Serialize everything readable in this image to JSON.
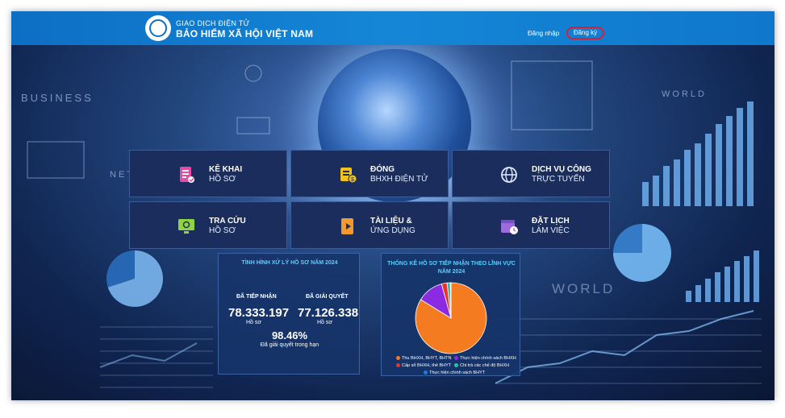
{
  "header": {
    "brand_top": "GIAO DỊCH ĐIỆN TỬ",
    "brand_main": "BẢO HIỂM XÃ HỘI VIỆT NAM",
    "login": "Đăng nhập",
    "register": "Đăng ký"
  },
  "background_texts": [
    "BUSINESS",
    "NETWO",
    "WORLD",
    "WORLD"
  ],
  "tiles": [
    {
      "line1": "KÊ KHAI",
      "line2": "HỒ SƠ",
      "icon": "document-form-icon",
      "color": "#e84aa6"
    },
    {
      "line1": "ĐÓNG",
      "line2": "BHXH ĐIỆN TỬ",
      "icon": "money-bill-icon",
      "color": "#f2c21b"
    },
    {
      "line1": "DỊCH VỤ CÔNG",
      "line2": "TRỰC TUYẾN",
      "icon": "globe-icon",
      "color": "#dfe8ff"
    },
    {
      "line1": "TRA CỨU",
      "line2": "HỒ SƠ",
      "icon": "monitor-search-icon",
      "color": "#8fd33e"
    },
    {
      "line1": "TÀI LIỆU &",
      "line2": "ỨNG DỤNG",
      "icon": "document-play-icon",
      "color": "#f39a2d"
    },
    {
      "line1": "ĐẶT LỊCH",
      "line2": "LÀM VIỆC",
      "icon": "calendar-clock-icon",
      "color": "#9d6bdf"
    }
  ],
  "stats": {
    "title": "TÌNH HÌNH XỬ LÝ HỒ SƠ NĂM 2024",
    "received_label": "ĐÃ TIẾP NHẬN",
    "received_value": "78.333.197",
    "resolved_label": "ĐÃ GIẢI QUYẾT",
    "resolved_value": "77.126.338",
    "unit": "Hồ sơ",
    "rate": "98.46%",
    "rate_label": "Đã giải quyết trong hạn"
  },
  "chart_data": {
    "type": "pie",
    "title": "THỐNG KÊ HỒ SƠ TIẾP NHẬN THEO LĨNH VỰC NĂM 2024",
    "labels": [
      "Thu BHXH, BHYT, BHTN",
      "Thực hiện chính sách BHXH",
      "Cấp sổ BHXH, thẻ BHYT",
      "Chi trả các chế độ BHXH",
      "Thực hiện chính sách BHYT"
    ],
    "values": [
      84,
      12,
      2.5,
      1.5,
      0.3
    ],
    "colors": [
      "#f47b20",
      "#8a2be2",
      "#e8322b",
      "#20c997",
      "#1e7be0"
    ]
  }
}
